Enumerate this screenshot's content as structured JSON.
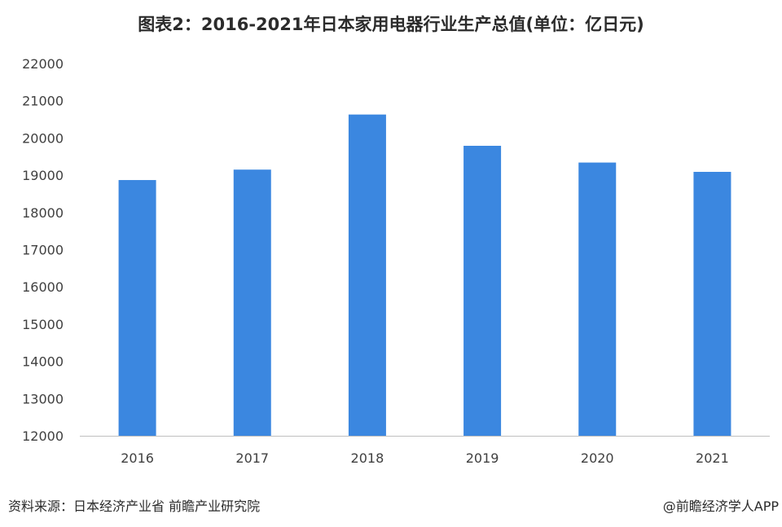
{
  "chart_data": {
    "type": "bar",
    "title": "图表2：2016-2021年日本家用电器行业生产总值(单位：亿日元)",
    "categories": [
      "2016",
      "2017",
      "2018",
      "2019",
      "2020",
      "2021"
    ],
    "values": [
      18870,
      19150,
      20630,
      19790,
      19340,
      19090
    ],
    "ylim": [
      12000,
      22000
    ],
    "yticks": [
      "12000",
      "13000",
      "14000",
      "15000",
      "16000",
      "17000",
      "18000",
      "19000",
      "20000",
      "21000",
      "22000"
    ],
    "xlabel": "",
    "ylabel": "",
    "grid": false,
    "bar_color": "#3b87e0"
  },
  "footer": {
    "source": "资料来源：日本经济产业省 前瞻产业研究院",
    "credit": "@前瞻经济学人APP"
  }
}
